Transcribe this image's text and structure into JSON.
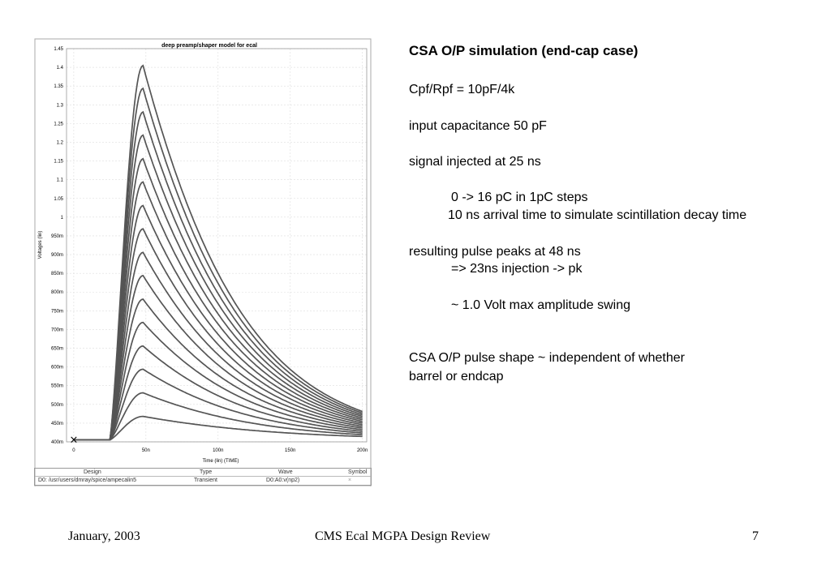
{
  "chart_data": {
    "type": "line",
    "title": "deep preamp/shaper model for ecal",
    "xlabel": "Time (lin) (TIME)",
    "ylabel": "Voltages (lin)",
    "xlim": [
      -5,
      203
    ],
    "ylim": [
      0.4,
      1.45
    ],
    "x_ticks": [
      {
        "value": 0,
        "label": "0"
      },
      {
        "value": 50,
        "label": "50n"
      },
      {
        "value": 100,
        "label": "100n"
      },
      {
        "value": 150,
        "label": "150n"
      },
      {
        "value": 200,
        "label": "200n"
      }
    ],
    "y_ticks": [
      {
        "value": 1.45,
        "label": "1.45"
      },
      {
        "value": 1.4,
        "label": "1.4"
      },
      {
        "value": 1.35,
        "label": "1.35"
      },
      {
        "value": 1.3,
        "label": "1.3"
      },
      {
        "value": 1.25,
        "label": "1.25"
      },
      {
        "value": 1.2,
        "label": "1.2"
      },
      {
        "value": 1.15,
        "label": "1.15"
      },
      {
        "value": 1.1,
        "label": "1.1"
      },
      {
        "value": 1.05,
        "label": "1.05"
      },
      {
        "value": 1.0,
        "label": "1"
      },
      {
        "value": 0.95,
        "label": "950m"
      },
      {
        "value": 0.9,
        "label": "900m"
      },
      {
        "value": 0.85,
        "label": "850m"
      },
      {
        "value": 0.8,
        "label": "800m"
      },
      {
        "value": 0.75,
        "label": "750m"
      },
      {
        "value": 0.7,
        "label": "700m"
      },
      {
        "value": 0.65,
        "label": "650m"
      },
      {
        "value": 0.6,
        "label": "600m"
      },
      {
        "value": 0.55,
        "label": "550m"
      },
      {
        "value": 0.5,
        "label": "500m"
      },
      {
        "value": 0.45,
        "label": "450m"
      },
      {
        "value": 0.4,
        "label": "400m"
      }
    ],
    "baseline": 0.405,
    "start_time": 25,
    "peak_time": 48,
    "end_time": 200,
    "peaks": [
      0.468,
      0.531,
      0.594,
      0.656,
      0.719,
      0.781,
      0.844,
      0.906,
      0.969,
      1.031,
      1.094,
      1.156,
      1.219,
      1.281,
      1.344,
      1.405
    ],
    "end_values": [
      0.41,
      0.412,
      0.414,
      0.416,
      0.418,
      0.42,
      0.422,
      0.424,
      0.426,
      0.428,
      0.43,
      0.432,
      0.434,
      0.436,
      0.438,
      0.44
    ],
    "marker": {
      "x": 0,
      "y": 0.405,
      "symbol": "×"
    },
    "grid": true,
    "legend_table": {
      "headers": [
        "Design",
        "Type",
        "Wave",
        "Symbol"
      ],
      "row": [
        "D0: /usr/users/dmray/spice/ampecalin5",
        "Transient",
        "D0:A0:v(np2)",
        "×"
      ]
    }
  },
  "panel": {
    "title": "CSA O/P simulation (end-cap case)",
    "line1": "Cpf/Rpf = 10pF/4k",
    "line2": "input capacitance 50 pF",
    "line3": "signal injected at 25 ns",
    "line4": "0 -> 16 pC in 1pC steps",
    "line5": "10 ns arrival time to simulate scintillation decay time",
    "line6": "resulting pulse peaks at 48 ns",
    "line7": "=> 23ns injection -> pk",
    "line8": "~ 1.0 Volt max amplitude swing",
    "line9": "CSA O/P pulse shape ~ independent of whether",
    "line10": "barrel or endcap"
  },
  "footer": {
    "date": "January, 2003",
    "center": "CMS Ecal MGPA Design Review",
    "page": "7"
  }
}
